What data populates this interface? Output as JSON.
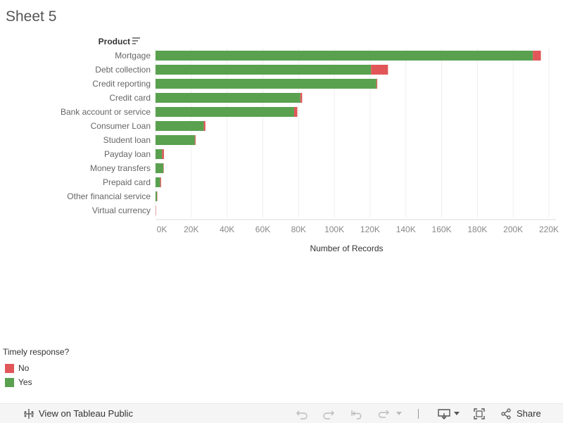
{
  "sheet_title": "Sheet 5",
  "colors": {
    "yes": "#59a14f",
    "no": "#e15759",
    "axis_text": "#888888",
    "grid": "#eeeeee"
  },
  "legend": {
    "title": "Timely response?",
    "items": [
      {
        "label": "No",
        "color": "#e15759"
      },
      {
        "label": "Yes",
        "color": "#59a14f"
      }
    ]
  },
  "toolbar": {
    "view_label": "View on Tableau Public",
    "share_label": "Share"
  },
  "chart_data": {
    "type": "bar",
    "orientation": "horizontal",
    "stacked": true,
    "row_header": "Product",
    "xlabel": "Number of Records",
    "xlim": [
      0,
      220000
    ],
    "xticks": [
      0,
      20000,
      40000,
      60000,
      80000,
      100000,
      120000,
      140000,
      160000,
      180000,
      200000,
      220000
    ],
    "xtick_labels": [
      "0K",
      "20K",
      "40K",
      "60K",
      "80K",
      "100K",
      "120K",
      "140K",
      "160K",
      "180K",
      "200K",
      "220K"
    ],
    "categories": [
      "Mortgage",
      "Debt collection",
      "Credit reporting",
      "Credit card",
      "Bank account or service",
      "Consumer Loan",
      "Student loan",
      "Payday loan",
      "Money transfers",
      "Prepaid card",
      "Other financial service",
      "Virtual currency"
    ],
    "series": [
      {
        "name": "Yes",
        "values": [
          211000,
          120500,
          123500,
          81000,
          77500,
          27000,
          22000,
          3700,
          4400,
          2600,
          800,
          10
        ]
      },
      {
        "name": "No",
        "values": [
          4500,
          9500,
          500,
          1000,
          1800,
          900,
          400,
          1000,
          200,
          500,
          100,
          6
        ]
      }
    ]
  }
}
